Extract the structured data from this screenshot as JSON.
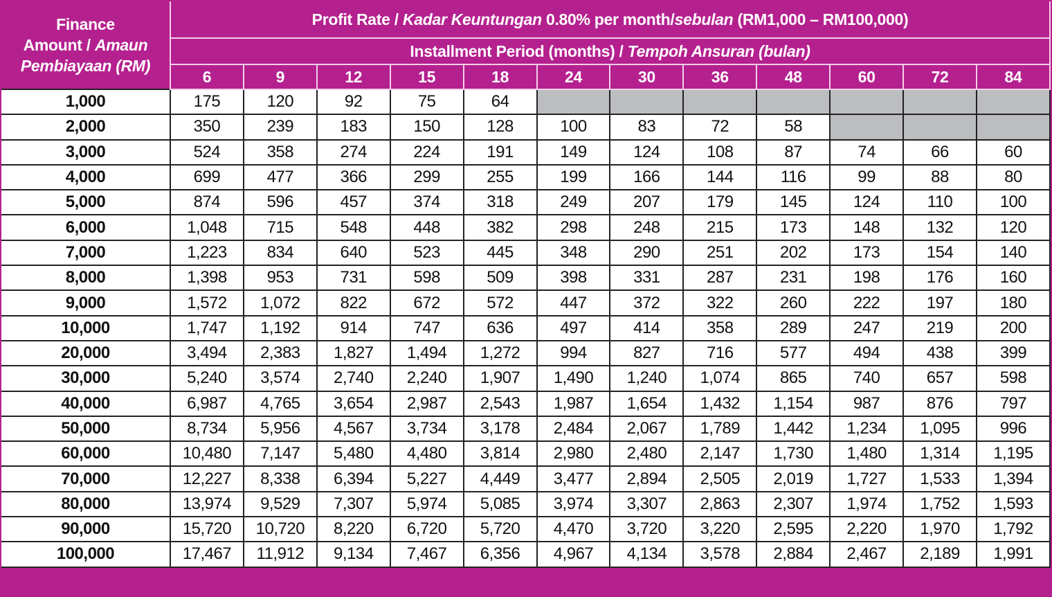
{
  "header": {
    "amount_label_line1": "Finance",
    "amount_label_en": "Amount / ",
    "amount_label_my": "Amaun Pembiayaan (RM)",
    "title_en": "Profit Rate / ",
    "title_my": "Kadar Keuntungan",
    "title_rate": " 0.80% per month/",
    "title_my2": "sebulan",
    "title_range": " (RM1,000 – RM100,000)",
    "period_en": "Installment Period (months) / ",
    "period_my": "Tempoh Ansuran (bulan)"
  },
  "colors": {
    "header_bg": "#b5208f",
    "unavailable_cell": "#bcbdc0"
  },
  "periods": [
    "6",
    "9",
    "12",
    "15",
    "18",
    "24",
    "30",
    "36",
    "48",
    "60",
    "72",
    "84"
  ],
  "rows": [
    {
      "amount": "1,000",
      "values": [
        "175",
        "120",
        "92",
        "75",
        "64",
        null,
        null,
        null,
        null,
        null,
        null,
        null
      ]
    },
    {
      "amount": "2,000",
      "values": [
        "350",
        "239",
        "183",
        "150",
        "128",
        "100",
        "83",
        "72",
        "58",
        null,
        null,
        null
      ]
    },
    {
      "amount": "3,000",
      "values": [
        "524",
        "358",
        "274",
        "224",
        "191",
        "149",
        "124",
        "108",
        "87",
        "74",
        "66",
        "60"
      ]
    },
    {
      "amount": "4,000",
      "values": [
        "699",
        "477",
        "366",
        "299",
        "255",
        "199",
        "166",
        "144",
        "116",
        "99",
        "88",
        "80"
      ]
    },
    {
      "amount": "5,000",
      "values": [
        "874",
        "596",
        "457",
        "374",
        "318",
        "249",
        "207",
        "179",
        "145",
        "124",
        "110",
        "100"
      ]
    },
    {
      "amount": "6,000",
      "values": [
        "1,048",
        "715",
        "548",
        "448",
        "382",
        "298",
        "248",
        "215",
        "173",
        "148",
        "132",
        "120"
      ]
    },
    {
      "amount": "7,000",
      "values": [
        "1,223",
        "834",
        "640",
        "523",
        "445",
        "348",
        "290",
        "251",
        "202",
        "173",
        "154",
        "140"
      ]
    },
    {
      "amount": "8,000",
      "values": [
        "1,398",
        "953",
        "731",
        "598",
        "509",
        "398",
        "331",
        "287",
        "231",
        "198",
        "176",
        "160"
      ]
    },
    {
      "amount": "9,000",
      "values": [
        "1,572",
        "1,072",
        "822",
        "672",
        "572",
        "447",
        "372",
        "322",
        "260",
        "222",
        "197",
        "180"
      ]
    },
    {
      "amount": "10,000",
      "values": [
        "1,747",
        "1,192",
        "914",
        "747",
        "636",
        "497",
        "414",
        "358",
        "289",
        "247",
        "219",
        "200"
      ]
    },
    {
      "amount": "20,000",
      "values": [
        "3,494",
        "2,383",
        "1,827",
        "1,494",
        "1,272",
        "994",
        "827",
        "716",
        "577",
        "494",
        "438",
        "399"
      ]
    },
    {
      "amount": "30,000",
      "values": [
        "5,240",
        "3,574",
        "2,740",
        "2,240",
        "1,907",
        "1,490",
        "1,240",
        "1,074",
        "865",
        "740",
        "657",
        "598"
      ]
    },
    {
      "amount": "40,000",
      "values": [
        "6,987",
        "4,765",
        "3,654",
        "2,987",
        "2,543",
        "1,987",
        "1,654",
        "1,432",
        "1,154",
        "987",
        "876",
        "797"
      ]
    },
    {
      "amount": "50,000",
      "values": [
        "8,734",
        "5,956",
        "4,567",
        "3,734",
        "3,178",
        "2,484",
        "2,067",
        "1,789",
        "1,442",
        "1,234",
        "1,095",
        "996"
      ]
    },
    {
      "amount": "60,000",
      "values": [
        "10,480",
        "7,147",
        "5,480",
        "4,480",
        "3,814",
        "2,980",
        "2,480",
        "2,147",
        "1,730",
        "1,480",
        "1,314",
        "1,195"
      ]
    },
    {
      "amount": "70,000",
      "values": [
        "12,227",
        "8,338",
        "6,394",
        "5,227",
        "4,449",
        "3,477",
        "2,894",
        "2,505",
        "2,019",
        "1,727",
        "1,533",
        "1,394"
      ]
    },
    {
      "amount": "80,000",
      "values": [
        "13,974",
        "9,529",
        "7,307",
        "5,974",
        "5,085",
        "3,974",
        "3,307",
        "2,863",
        "2,307",
        "1,974",
        "1,752",
        "1,593"
      ]
    },
    {
      "amount": "90,000",
      "values": [
        "15,720",
        "10,720",
        "8,220",
        "6,720",
        "5,720",
        "4,470",
        "3,720",
        "3,220",
        "2,595",
        "2,220",
        "1,970",
        "1,792"
      ]
    },
    {
      "amount": "100,000",
      "values": [
        "17,467",
        "11,912",
        "9,134",
        "7,467",
        "6,356",
        "4,967",
        "4,134",
        "3,578",
        "2,884",
        "2,467",
        "2,189",
        "1,991"
      ]
    }
  ]
}
